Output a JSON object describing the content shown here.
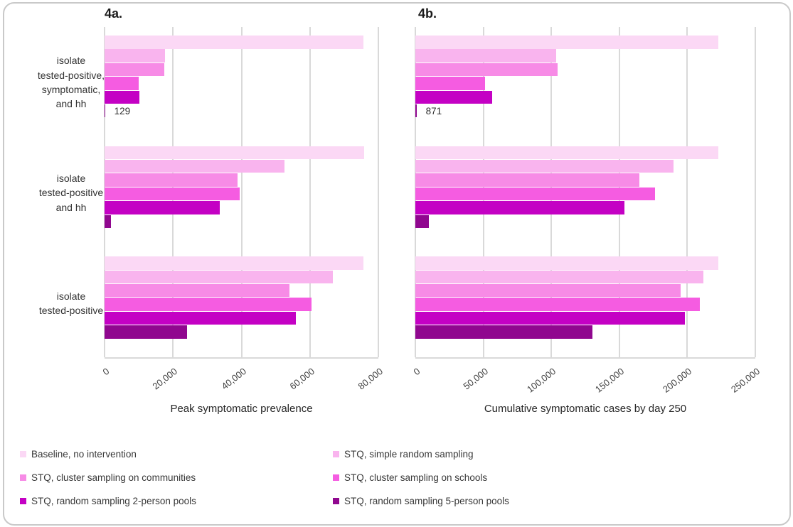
{
  "figure": {
    "background": "#ffffff",
    "border_color": "#c9c9c9",
    "gridline_color": "#d9d9d9",
    "text_color": "#333333"
  },
  "chart_data": [
    {
      "type": "bar",
      "panel_label": "4a.",
      "orientation": "horizontal",
      "xlabel": "Peak symptomatic prevalence",
      "xlim": [
        0,
        80000
      ],
      "xticks": [
        0,
        20000,
        40000,
        60000,
        80000
      ],
      "xtick_labels": [
        "0",
        "20,000",
        "40,000",
        "60,000",
        "80,000"
      ],
      "grid": true,
      "legend_position": "bottom",
      "categories": [
        "isolate\ntested-positive,\nsymptomatic,\nand hh",
        "isolate\ntested-positive\nand hh",
        "isolate\ntested-positive"
      ],
      "series": [
        {
          "name": "Baseline, no intervention",
          "color": "#fbd8f5",
          "values": [
            75600,
            75900,
            75600
          ]
        },
        {
          "name": "STQ, simple random sampling",
          "color": "#f9b4ee",
          "values": [
            17700,
            52500,
            66600
          ]
        },
        {
          "name": "STQ, cluster sampling on communities",
          "color": "#f78be6",
          "values": [
            17400,
            38900,
            54100
          ]
        },
        {
          "name": "STQ, cluster sampling on schools",
          "color": "#f55ce1",
          "values": [
            10000,
            39400,
            60400
          ]
        },
        {
          "name": "STQ, random sampling 2-person pools",
          "color": "#c401c4",
          "values": [
            10200,
            33700,
            55800
          ]
        },
        {
          "name": "STQ, random sampling 5-person pools",
          "color": "#90078f",
          "values": [
            129,
            1900,
            24200
          ]
        }
      ],
      "annotations": [
        {
          "text": "129",
          "category_index": 0,
          "series_index": 5
        }
      ]
    },
    {
      "type": "bar",
      "panel_label": "4b.",
      "orientation": "horizontal",
      "xlabel": "Cumulative symptomatic cases by day 250",
      "xlim": [
        0,
        250000
      ],
      "xticks": [
        0,
        50000,
        100000,
        150000,
        200000,
        250000
      ],
      "xtick_labels": [
        "0",
        "50,000",
        "100,000",
        "150,000",
        "200,000",
        "250,000"
      ],
      "grid": true,
      "legend_position": "bottom",
      "categories": [
        "isolate\ntested-positive,\nsymptomatic,\nand hh",
        "isolate\ntested-positive\nand hh",
        "isolate\ntested-positive"
      ],
      "series": [
        {
          "name": "Baseline, no intervention",
          "color": "#fbd8f5",
          "values": [
            223000,
            223000,
            223000
          ]
        },
        {
          "name": "STQ, simple random sampling",
          "color": "#f9b4ee",
          "values": [
            103500,
            190000,
            212000
          ]
        },
        {
          "name": "STQ, cluster sampling on communities",
          "color": "#f78be6",
          "values": [
            104700,
            164500,
            195000
          ]
        },
        {
          "name": "STQ, cluster sampling on schools",
          "color": "#f55ce1",
          "values": [
            51200,
            176500,
            209000
          ]
        },
        {
          "name": "STQ, random sampling 2-person pools",
          "color": "#c401c4",
          "values": [
            56500,
            154000,
            198000
          ]
        },
        {
          "name": "STQ, random sampling 5-person pools",
          "color": "#90078f",
          "values": [
            871,
            9900,
            130000
          ]
        }
      ],
      "annotations": [
        {
          "text": "871",
          "category_index": 0,
          "series_index": 5
        }
      ]
    }
  ],
  "legend": {
    "column_order": "col1: series 1,3,5 / col2: series 2,4,6"
  }
}
